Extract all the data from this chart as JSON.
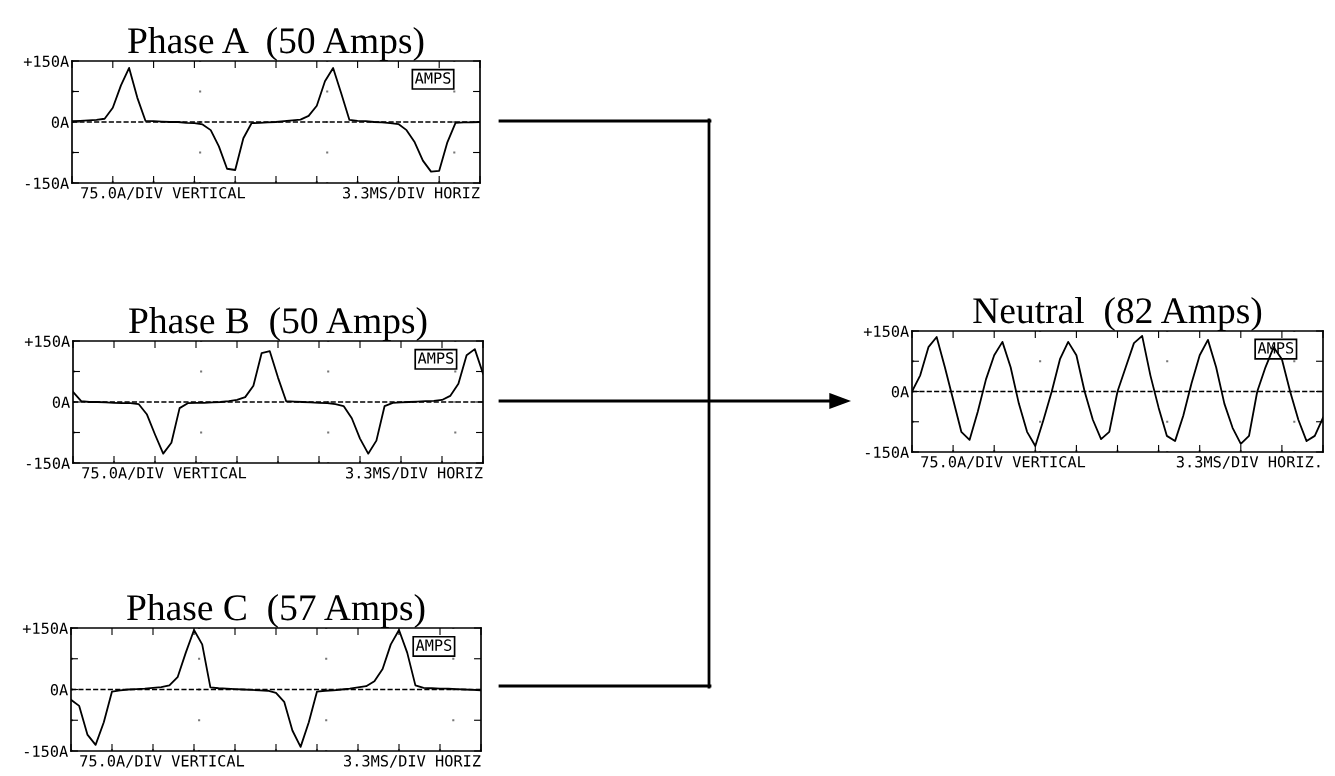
{
  "chart_data": [
    {
      "type": "line",
      "title": "Phase A  (50 Amps)",
      "categories": [
        null,
        null,
        null,
        null,
        null,
        null,
        null,
        null,
        null,
        null,
        null,
        null,
        null,
        null,
        null,
        null,
        null,
        null,
        null,
        null,
        null,
        null,
        null,
        null,
        null,
        null,
        null,
        null,
        null,
        null,
        null,
        null,
        null,
        null,
        null,
        null,
        null,
        null,
        null,
        null,
        null,
        null,
        null,
        null,
        null,
        null,
        null,
        null,
        null,
        null,
        null
      ],
      "series": [
        {
          "color": "#000000",
          "values": [
            2,
            3,
            4,
            5,
            8,
            35,
            90,
            133,
            60,
            3,
            2,
            1,
            0,
            0,
            -2,
            -3,
            -6,
            -20,
            -60,
            -115,
            -118,
            -40,
            -3,
            -2,
            -1,
            0,
            2,
            4,
            6,
            15,
            40,
            100,
            133,
            70,
            5,
            3,
            2,
            0,
            -1,
            -3,
            -5,
            -20,
            -50,
            -95,
            -122,
            -120,
            -50,
            -2,
            -1,
            -1,
            0
          ]
        }
      ],
      "ylim": [
        -150,
        150
      ],
      "yticks": [
        {
          "value": -150,
          "label": "-150A"
        },
        {
          "value": -75,
          "label": null
        },
        {
          "value": 0,
          "label": "0A"
        },
        {
          "value": 75,
          "label": null
        },
        {
          "value": 150,
          "label": "+150A"
        }
      ],
      "grid": true,
      "ref_lines": [
        {
          "axis": "y",
          "value": 0,
          "line_style": "dashed"
        }
      ],
      "annotations": [
        "AMPS",
        "75.0A/DIV VERTICAL",
        "3.3MS/DIV HORIZ"
      ]
    },
    {
      "type": "line",
      "title": "Phase B  (50 Amps)",
      "categories": [
        null,
        null,
        null,
        null,
        null,
        null,
        null,
        null,
        null,
        null,
        null,
        null,
        null,
        null,
        null,
        null,
        null,
        null,
        null,
        null,
        null,
        null,
        null,
        null,
        null,
        null,
        null,
        null,
        null,
        null,
        null,
        null,
        null,
        null,
        null,
        null,
        null,
        null,
        null,
        null,
        null,
        null,
        null,
        null,
        null,
        null,
        null,
        null,
        null,
        null,
        null
      ],
      "series": [
        {
          "color": "#000000",
          "values": [
            25,
            2,
            0,
            0,
            -1,
            -2,
            -3,
            -3,
            -5,
            -30,
            -80,
            -127,
            -100,
            -15,
            -3,
            -2,
            -2,
            -1,
            0,
            2,
            5,
            12,
            40,
            120,
            125,
            60,
            2,
            1,
            0,
            -1,
            -2,
            -3,
            -5,
            -10,
            -40,
            -90,
            -127,
            -95,
            -10,
            -2,
            -1,
            0,
            1,
            2,
            3,
            5,
            15,
            45,
            115,
            130,
            70
          ]
        }
      ],
      "ylim": [
        -150,
        150
      ],
      "yticks": [
        {
          "value": -150,
          "label": "-150A"
        },
        {
          "value": -75,
          "label": null
        },
        {
          "value": 0,
          "label": "0A"
        },
        {
          "value": 75,
          "label": null
        },
        {
          "value": 150,
          "label": "+150A"
        }
      ],
      "grid": true,
      "ref_lines": [
        {
          "axis": "y",
          "value": 0,
          "line_style": "dashed"
        }
      ],
      "annotations": [
        "AMPS",
        "75.0A/DIV VERTICAL",
        "3.3MS/DIV HORIZ"
      ]
    },
    {
      "type": "line",
      "title": "Phase C  (57 Amps)",
      "categories": [
        null,
        null,
        null,
        null,
        null,
        null,
        null,
        null,
        null,
        null,
        null,
        null,
        null,
        null,
        null,
        null,
        null,
        null,
        null,
        null,
        null,
        null,
        null,
        null,
        null,
        null,
        null,
        null,
        null,
        null,
        null,
        null,
        null,
        null,
        null,
        null,
        null,
        null,
        null,
        null,
        null,
        null,
        null,
        null,
        null,
        null,
        null,
        null,
        null,
        null,
        null
      ],
      "series": [
        {
          "color": "#000000",
          "values": [
            -25,
            -40,
            -110,
            -135,
            -80,
            -5,
            -2,
            0,
            1,
            2,
            4,
            6,
            10,
            30,
            90,
            145,
            110,
            5,
            3,
            2,
            1,
            0,
            -1,
            -2,
            -3,
            -8,
            -30,
            -100,
            -140,
            -80,
            -5,
            -3,
            -2,
            0,
            2,
            5,
            8,
            20,
            50,
            110,
            145,
            90,
            10,
            4,
            3,
            2,
            2,
            1,
            0,
            -1,
            -2
          ]
        }
      ],
      "ylim": [
        -150,
        150
      ],
      "yticks": [
        {
          "value": -150,
          "label": "-150A"
        },
        {
          "value": -75,
          "label": null
        },
        {
          "value": 0,
          "label": "0A"
        },
        {
          "value": 75,
          "label": null
        },
        {
          "value": 150,
          "label": "+150A"
        }
      ],
      "grid": true,
      "ref_lines": [
        {
          "axis": "y",
          "value": 0,
          "line_style": "dashed"
        }
      ],
      "annotations": [
        "AMPS",
        "75.0A/DIV VERTICAL",
        "3.3MS/DIV HORIZ"
      ]
    },
    {
      "type": "line",
      "title": "Neutral  (82 Amps)",
      "categories": [
        null,
        null,
        null,
        null,
        null,
        null,
        null,
        null,
        null,
        null,
        null,
        null,
        null,
        null,
        null,
        null,
        null,
        null,
        null,
        null,
        null,
        null,
        null,
        null,
        null,
        null,
        null,
        null,
        null,
        null,
        null,
        null,
        null,
        null,
        null,
        null,
        null,
        null,
        null,
        null,
        null,
        null,
        null,
        null,
        null,
        null,
        null,
        null,
        null,
        null,
        null
      ],
      "series": [
        {
          "color": "#000000",
          "values": [
            0,
            40,
            110,
            135,
            60,
            -20,
            -100,
            -120,
            -50,
            30,
            90,
            123,
            60,
            -30,
            -100,
            -135,
            -70,
            0,
            80,
            123,
            90,
            0,
            -70,
            -118,
            -100,
            0,
            60,
            120,
            138,
            40,
            -40,
            -110,
            -123,
            -60,
            20,
            90,
            128,
            60,
            -30,
            -90,
            -130,
            -110,
            0,
            60,
            110,
            80,
            0,
            -70,
            -123,
            -110,
            -65
          ]
        }
      ],
      "ylim": [
        -150,
        150
      ],
      "yticks": [
        {
          "value": -150,
          "label": "-150A"
        },
        {
          "value": -75,
          "label": null
        },
        {
          "value": 0,
          "label": "0A"
        },
        {
          "value": 75,
          "label": null
        },
        {
          "value": 150,
          "label": "+150A"
        }
      ],
      "grid": true,
      "ref_lines": [
        {
          "axis": "y",
          "value": 0,
          "line_style": "dashed"
        }
      ],
      "annotations": [
        "AMPS",
        "75.0A/DIV VERTICAL",
        "3.3MS/DIV HORIZ."
      ]
    }
  ]
}
